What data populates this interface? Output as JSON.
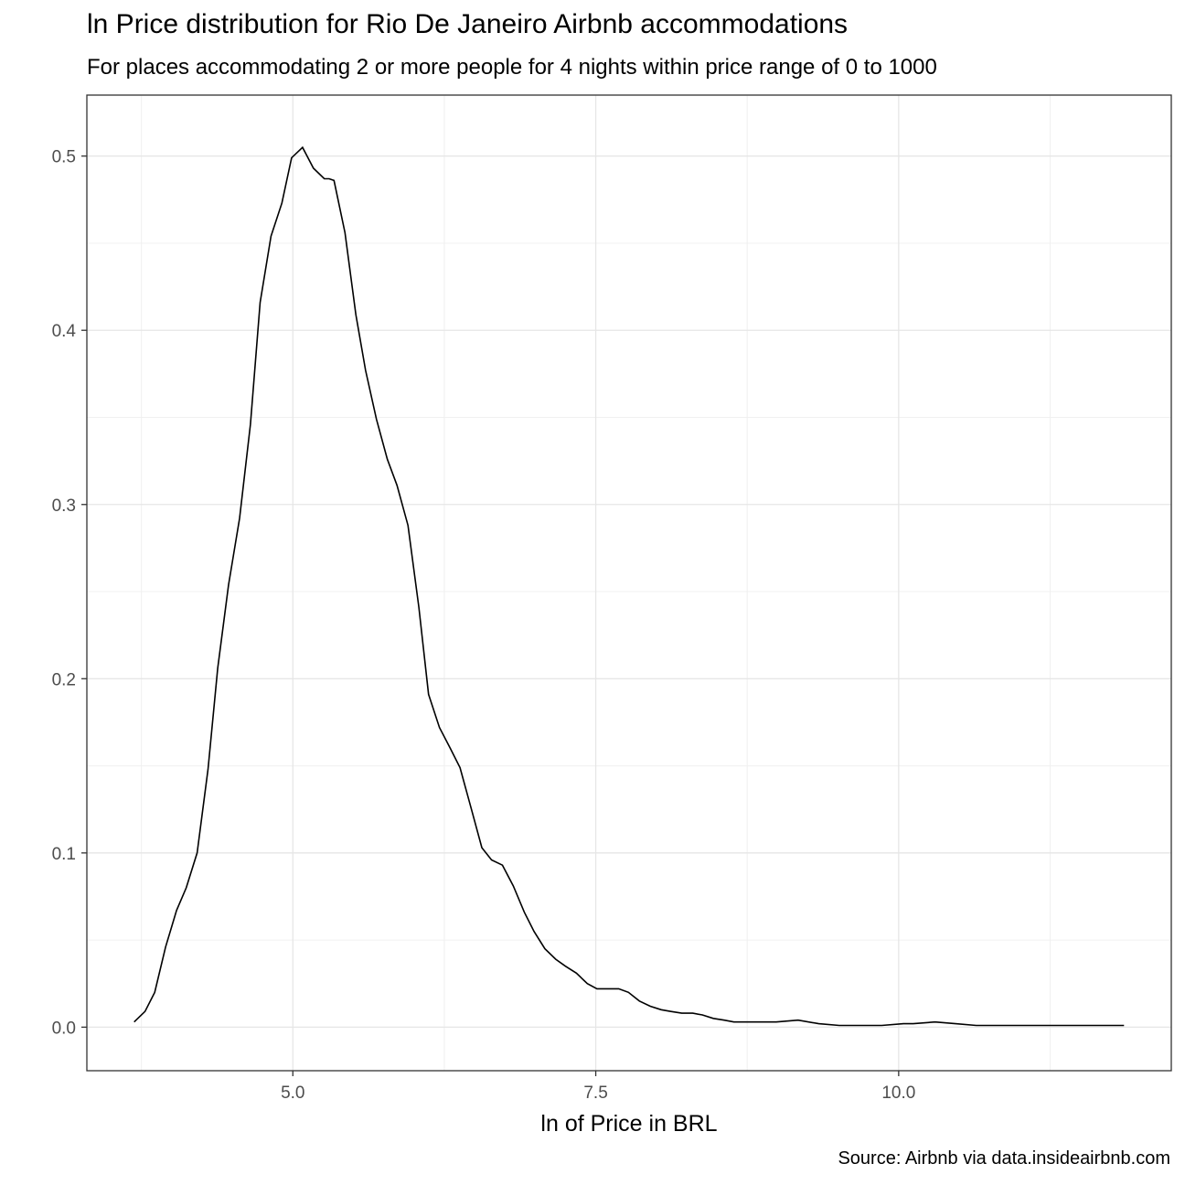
{
  "chart_data": {
    "type": "line",
    "title": "ln Price distribution for Rio De Janeiro Airbnb accommodations",
    "subtitle": "For places accommodating 2 or more people for 4 nights within price range of 0 to 1000",
    "caption": "Source: Airbnb via data.insideairbnb.com",
    "xlabel": "ln of Price in BRL",
    "ylabel": "",
    "xlim": [
      3.3,
      12.25
    ],
    "ylim": [
      -0.025,
      0.535
    ],
    "x_ticks": [
      5.0,
      7.5,
      10.0
    ],
    "x_tick_labels": [
      "5.0",
      "7.5",
      "10.0"
    ],
    "y_ticks": [
      0.0,
      0.1,
      0.2,
      0.3,
      0.4,
      0.5
    ],
    "y_tick_labels": [
      "0.0",
      "0.1",
      "0.2",
      "0.3",
      "0.4",
      "0.5"
    ],
    "grid": true,
    "line_color": "#000000",
    "series": [
      {
        "x": [
          3.69,
          3.78,
          3.86,
          3.95,
          4.04,
          4.12,
          4.21,
          4.3,
          4.38,
          4.47,
          4.56,
          4.65,
          4.73,
          4.82,
          4.91,
          4.99,
          5.08,
          5.17,
          5.26,
          5.3,
          5.34,
          5.43,
          5.52,
          5.6,
          5.69,
          5.78,
          5.86,
          5.95,
          6.04,
          6.12,
          6.21,
          6.3,
          6.38,
          6.47,
          6.56,
          6.64,
          6.73,
          6.82,
          6.91,
          6.99,
          7.08,
          7.17,
          7.25,
          7.34,
          7.43,
          7.51,
          7.6,
          7.69,
          7.77,
          7.86,
          7.95,
          8.04,
          8.12,
          8.21,
          8.3,
          8.38,
          8.47,
          8.56,
          8.64,
          8.73,
          8.82,
          8.9,
          8.99,
          9.17,
          9.34,
          9.51,
          9.69,
          9.86,
          10.04,
          10.12,
          10.3,
          10.47,
          10.64,
          10.82,
          10.91,
          11.08,
          11.25,
          11.43,
          11.6,
          11.78,
          11.86
        ],
        "y": [
          0.003,
          0.009,
          0.02,
          0.046,
          0.067,
          0.08,
          0.1,
          0.148,
          0.206,
          0.254,
          0.292,
          0.346,
          0.416,
          0.454,
          0.473,
          0.499,
          0.505,
          0.493,
          0.487,
          0.487,
          0.486,
          0.456,
          0.409,
          0.377,
          0.349,
          0.326,
          0.311,
          0.288,
          0.241,
          0.191,
          0.172,
          0.16,
          0.149,
          0.126,
          0.103,
          0.096,
          0.093,
          0.081,
          0.066,
          0.055,
          0.045,
          0.039,
          0.035,
          0.031,
          0.025,
          0.022,
          0.022,
          0.022,
          0.02,
          0.015,
          0.012,
          0.01,
          0.009,
          0.008,
          0.008,
          0.007,
          0.005,
          0.004,
          0.003,
          0.003,
          0.003,
          0.003,
          0.003,
          0.004,
          0.002,
          0.001,
          0.001,
          0.001,
          0.002,
          0.002,
          0.003,
          0.002,
          0.001,
          0.001,
          0.001,
          0.001,
          0.001,
          0.001,
          0.001,
          0.001,
          0.001
        ]
      }
    ]
  }
}
